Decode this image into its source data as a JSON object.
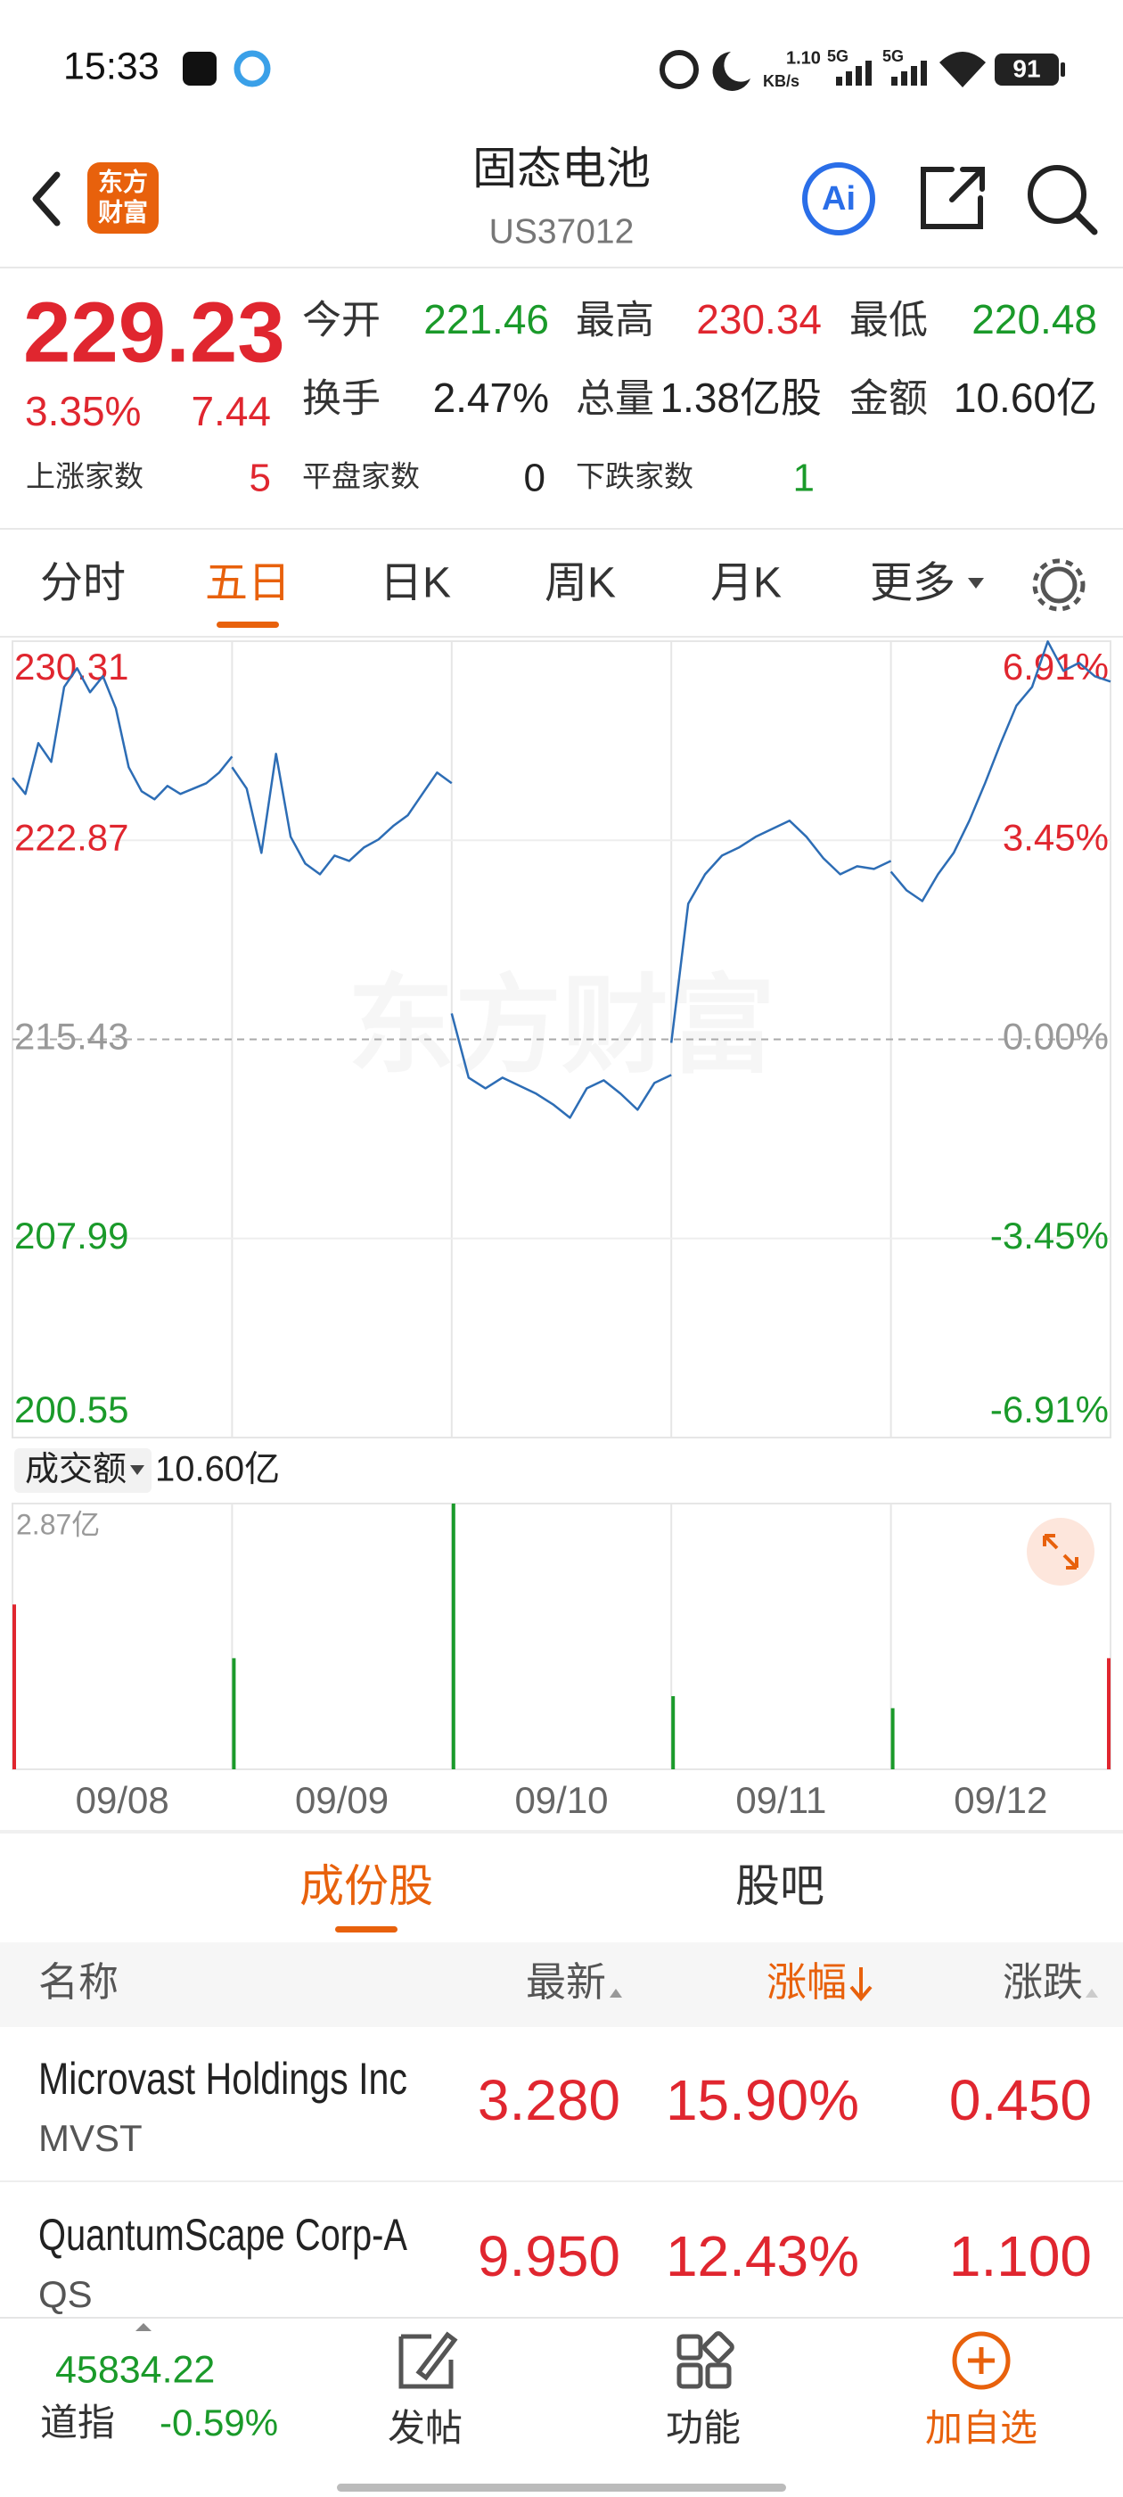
{
  "status": {
    "time": "15:33",
    "speed": "1.10",
    "speed_unit": "KB/s",
    "net1": "5G",
    "net2": "5G",
    "battery": "91"
  },
  "header": {
    "logo": [
      "东方",
      "财富"
    ],
    "title": "固态电池",
    "code": "US37012",
    "ai": "Ai"
  },
  "quote": {
    "price": "229.23",
    "change_pct": "3.35%",
    "change": "7.44",
    "stats": [
      [
        {
          "label": "今开",
          "value": "221.46",
          "tone": "down"
        },
        {
          "label": "最高",
          "value": "230.34",
          "tone": "up"
        },
        {
          "label": "最低",
          "value": "220.48",
          "tone": "down"
        }
      ],
      [
        {
          "label": "换手",
          "value": "2.47%",
          "tone": "flat"
        },
        {
          "label": "总量",
          "value": "1.38亿股",
          "tone": "flat"
        },
        {
          "label": "金额",
          "value": "10.60亿",
          "tone": "flat"
        }
      ]
    ],
    "breadth": [
      {
        "label": "上涨家数",
        "value": "5",
        "tone": "up"
      },
      {
        "label": "平盘家数",
        "value": "0",
        "tone": "flat"
      },
      {
        "label": "下跌家数",
        "value": "1",
        "tone": "down"
      }
    ]
  },
  "tabs": [
    "分时",
    "五日",
    "日K",
    "周K",
    "月K",
    "更多"
  ],
  "active_tab": 1,
  "price_chart": {
    "type": "line",
    "color": "#2d6db5",
    "watermark": "东方财富",
    "ylim": [
      200.55,
      230.31
    ],
    "yticks": [
      230.31,
      222.87,
      215.43,
      207.99,
      200.55
    ],
    "pct_ticks": [
      "6.91%",
      "3.45%",
      "0.00%",
      "-3.45%",
      "-6.91%"
    ],
    "days": [
      [
        225.2,
        224.6,
        226.5,
        225.8,
        228.6,
        229.3,
        228.4,
        229.0,
        227.8,
        225.6,
        224.7,
        224.4,
        224.9,
        224.6,
        224.8,
        225.0,
        225.4,
        226.0
      ],
      [
        225.6,
        224.8,
        222.4,
        226.1,
        223.0,
        222.0,
        221.6,
        222.3,
        222.1,
        222.6,
        222.9,
        223.4,
        223.8,
        224.6,
        225.4,
        225.0
      ],
      [
        216.4,
        214.0,
        213.6,
        214.0,
        213.7,
        213.4,
        213.0,
        212.5,
        213.6,
        213.9,
        213.4,
        212.8,
        213.8,
        214.1
      ],
      [
        215.3,
        220.5,
        221.6,
        222.3,
        222.6,
        223.0,
        223.3,
        223.6,
        223.0,
        222.2,
        221.6,
        221.9,
        221.8,
        222.1
      ],
      [
        221.7,
        221.0,
        220.6,
        221.6,
        222.4,
        223.6,
        225.0,
        226.5,
        227.9,
        228.6,
        230.3,
        229.2,
        229.5,
        229.0,
        228.8
      ]
    ],
    "dates": [
      "09/08",
      "09/09",
      "09/10",
      "09/11",
      "09/12"
    ]
  },
  "volume": {
    "label": "成交额",
    "total": "10.60亿",
    "max_label": "2.87亿",
    "ylim": [
      0,
      2.87
    ],
    "values": [
      1.78,
      1.2,
      2.87,
      0.79,
      0.66,
      1.2
    ],
    "colors": [
      "#e0262f",
      "#1a9a2a",
      "#1a9a2a",
      "#1a9a2a",
      "#1a9a2a",
      "#e0262f"
    ]
  },
  "list_tabs": [
    "成份股",
    "股吧"
  ],
  "columns": [
    "名称",
    "最新",
    "涨幅",
    "涨跌"
  ],
  "rows": [
    {
      "name": "Microvast Holdings Inc",
      "symbol": "MVST",
      "last": "3.280",
      "pct": "15.90%",
      "change": "0.450"
    },
    {
      "name": "QuantumScape Corp-A",
      "symbol": "QS",
      "last": "9.950",
      "pct": "12.43%",
      "change": "1.100"
    }
  ],
  "footer": {
    "index_value": "45834.22",
    "index_name": "道指",
    "index_change": "-0.59%",
    "nav": [
      "发帖",
      "功能",
      "加自选"
    ]
  }
}
